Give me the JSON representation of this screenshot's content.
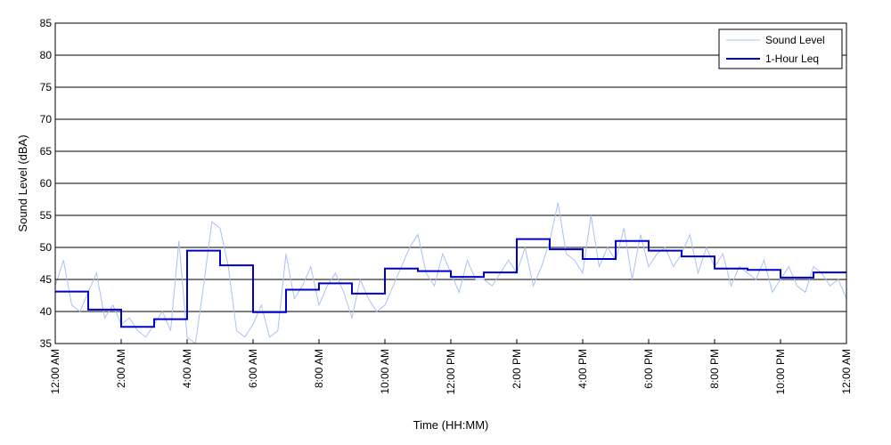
{
  "chart_data": {
    "type": "line",
    "title": "",
    "xlabel": "Time (HH:MM)",
    "ylabel": "Sound Level (dBA)",
    "ylim": [
      35,
      85
    ],
    "yticks": [
      35,
      40,
      45,
      50,
      55,
      60,
      65,
      70,
      75,
      80,
      85
    ],
    "xlim_hours": [
      0,
      24
    ],
    "xtick_hours": [
      0,
      2,
      4,
      6,
      8,
      10,
      12,
      14,
      16,
      18,
      20,
      22,
      24
    ],
    "xtick_labels": [
      "12:00 AM",
      "2:00 AM",
      "4:00 AM",
      "6:00 AM",
      "8:00 AM",
      "10:00 AM",
      "12:00 PM",
      "2:00 PM",
      "4:00 PM",
      "6:00 PM",
      "8:00 PM",
      "10:00 PM",
      "12:00 AM"
    ],
    "grid": "horizontal",
    "legend_position": "top-right",
    "series": [
      {
        "name": "Sound Level",
        "color": "#a9c2f2",
        "style": "thin-line",
        "x_hours": [
          0,
          0.25,
          0.5,
          0.75,
          1,
          1.25,
          1.5,
          1.75,
          2,
          2.25,
          2.5,
          2.75,
          3,
          3.25,
          3.5,
          3.75,
          4,
          4.25,
          4.5,
          4.75,
          5,
          5.25,
          5.5,
          5.75,
          6,
          6.25,
          6.5,
          6.75,
          7,
          7.25,
          7.5,
          7.75,
          8,
          8.25,
          8.5,
          8.75,
          9,
          9.25,
          9.5,
          9.75,
          10,
          10.25,
          10.5,
          10.75,
          11,
          11.25,
          11.5,
          11.75,
          12,
          12.25,
          12.5,
          12.75,
          13,
          13.25,
          13.5,
          13.75,
          14,
          14.25,
          14.5,
          14.75,
          15,
          15.25,
          15.5,
          15.75,
          16,
          16.25,
          16.5,
          16.75,
          17,
          17.25,
          17.5,
          17.75,
          18,
          18.25,
          18.5,
          18.75,
          19,
          19.25,
          19.5,
          19.75,
          20,
          20.25,
          20.5,
          20.75,
          21,
          21.25,
          21.5,
          21.75,
          22,
          22.25,
          22.5,
          22.75,
          23,
          23.25,
          23.5,
          23.75,
          24
        ],
        "values": [
          44,
          48,
          41,
          40,
          43,
          46,
          39,
          41,
          38,
          39,
          37,
          36,
          38,
          40,
          37,
          51,
          36,
          35,
          44,
          54,
          53,
          47,
          37,
          36,
          38,
          41,
          36,
          37,
          49,
          42,
          44,
          47,
          41,
          44,
          46,
          43,
          39,
          45,
          42,
          40,
          41,
          44,
          47,
          50,
          52,
          46,
          44,
          49,
          46,
          43,
          48,
          45,
          45,
          44,
          46,
          48,
          46,
          50,
          44,
          47,
          51,
          57,
          49,
          48,
          46,
          55,
          47,
          50,
          48,
          53,
          45,
          52,
          47,
          49,
          50,
          47,
          49,
          52,
          46,
          50,
          47,
          49,
          44,
          47,
          46,
          45,
          48,
          43,
          45,
          47,
          44,
          43,
          47,
          46,
          44,
          45,
          42
        ]
      },
      {
        "name": "1-Hour Leq",
        "color": "#0000cc",
        "style": "step",
        "x_hours": [
          0,
          1,
          2,
          3,
          4,
          5,
          6,
          7,
          8,
          9,
          10,
          11,
          12,
          13,
          14,
          15,
          16,
          17,
          18,
          19,
          20,
          21,
          22,
          23
        ],
        "values": [
          43.1,
          40.3,
          37.6,
          38.8,
          49.5,
          47.2,
          39.9,
          43.4,
          44.4,
          42.8,
          46.7,
          46.3,
          45.4,
          46.1,
          51.3,
          49.7,
          48.2,
          51.0,
          49.5,
          48.6,
          46.7,
          46.5,
          45.3,
          46.1
        ]
      }
    ]
  }
}
